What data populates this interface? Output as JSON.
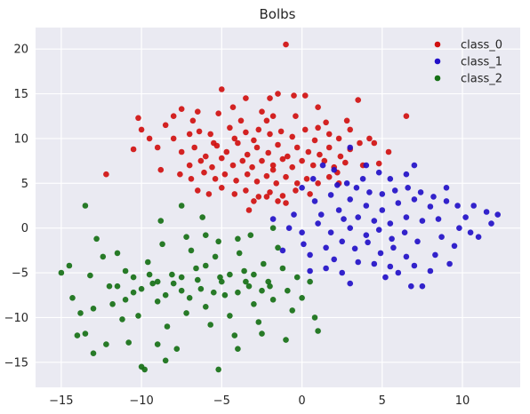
{
  "chart_data": {
    "type": "scatter",
    "title": "Bolbs",
    "xlabel": "",
    "ylabel": "",
    "xlim": [
      -16.6,
      13.6
    ],
    "ylim": [
      -17.8,
      22.4
    ],
    "xticks": [
      -15,
      -10,
      -5,
      0,
      5,
      10
    ],
    "yticks": [
      -15,
      -10,
      -5,
      0,
      5,
      10,
      15,
      20
    ],
    "grid": true,
    "legend_placement": "top-right",
    "series": [
      {
        "name": "class_0",
        "color": "#d01010",
        "points": [
          [
            -1,
            20.5
          ],
          [
            -5,
            15.5
          ],
          [
            -3.5,
            14.5
          ],
          [
            -2,
            14.5
          ],
          [
            -0.5,
            14.8
          ],
          [
            -1.5,
            15
          ],
          [
            0.2,
            14.8
          ],
          [
            -6.5,
            13
          ],
          [
            -7.5,
            13.3
          ],
          [
            -4.3,
            13.5
          ],
          [
            -2.5,
            13
          ],
          [
            -1.8,
            12.5
          ],
          [
            -0.4,
            12.5
          ],
          [
            1,
            13.5
          ],
          [
            3.5,
            14.3
          ],
          [
            6.5,
            12.5
          ],
          [
            -10.2,
            12.3
          ],
          [
            -10,
            11
          ],
          [
            -8.5,
            11.5
          ],
          [
            -9,
            9
          ],
          [
            -10.5,
            8.8
          ],
          [
            -8,
            10
          ],
          [
            -7,
            10.5
          ],
          [
            -6.4,
            10.8
          ],
          [
            -5.7,
            10.5
          ],
          [
            -4.5,
            11.2
          ],
          [
            -3.5,
            10.7
          ],
          [
            -2.7,
            11
          ],
          [
            -2,
            10.5
          ],
          [
            -1.3,
            10.8
          ],
          [
            -0.6,
            10.2
          ],
          [
            0.2,
            11
          ],
          [
            1,
            11.2
          ],
          [
            1.7,
            10.5
          ],
          [
            2.3,
            10
          ],
          [
            3,
            11
          ],
          [
            3.6,
            9.5
          ],
          [
            4.2,
            10
          ],
          [
            -7.5,
            8.5
          ],
          [
            -6.7,
            9
          ],
          [
            -6,
            8
          ],
          [
            -5.3,
            9.2
          ],
          [
            -4.7,
            8.5
          ],
          [
            -4,
            9.5
          ],
          [
            -3.4,
            8.2
          ],
          [
            -2.8,
            9
          ],
          [
            -2.1,
            8.4
          ],
          [
            -1.5,
            9.3
          ],
          [
            -0.9,
            8
          ],
          [
            -0.3,
            9
          ],
          [
            0.4,
            8.5
          ],
          [
            1.1,
            8.2
          ],
          [
            1.7,
            9
          ],
          [
            2.4,
            8
          ],
          [
            3,
            8.8
          ],
          [
            -7,
            7
          ],
          [
            -6.3,
            7.5
          ],
          [
            -5.6,
            6.8
          ],
          [
            -5,
            7.8
          ],
          [
            -4.3,
            7
          ],
          [
            -3.7,
            7.5
          ],
          [
            -3.1,
            6.8
          ],
          [
            -2.5,
            7.5
          ],
          [
            -1.8,
            7
          ],
          [
            -1.2,
            7.7
          ],
          [
            -0.6,
            6.8
          ],
          [
            0,
            7.5
          ],
          [
            0.7,
            7
          ],
          [
            1.4,
            7.5
          ],
          [
            2,
            6.8
          ],
          [
            2.7,
            7.3
          ],
          [
            -8.8,
            6.5
          ],
          [
            -7.6,
            6
          ],
          [
            -6.9,
            5.5
          ],
          [
            -6.1,
            6.2
          ],
          [
            -5.4,
            5.5
          ],
          [
            -4.8,
            6
          ],
          [
            -4.1,
            5.3
          ],
          [
            -3.4,
            6
          ],
          [
            -2.8,
            5.2
          ],
          [
            -2.2,
            5.8
          ],
          [
            -1.6,
            5
          ],
          [
            -1,
            5.7
          ],
          [
            -0.3,
            5
          ],
          [
            0.3,
            5.5
          ],
          [
            1,
            5
          ],
          [
            1.7,
            5.7
          ],
          [
            2.3,
            5
          ],
          [
            -6.5,
            4.2
          ],
          [
            -5.8,
            3.8
          ],
          [
            -5,
            4.5
          ],
          [
            -4.2,
            3.8
          ],
          [
            -3.5,
            4.2
          ],
          [
            -2.7,
            3.5
          ],
          [
            -2,
            4
          ],
          [
            -1.2,
            3.6
          ],
          [
            -0.4,
            4.2
          ],
          [
            0.5,
            3.8
          ],
          [
            -3,
            3
          ],
          [
            -2.2,
            3.5
          ],
          [
            -1.5,
            3
          ],
          [
            -12.2,
            6
          ],
          [
            -3.3,
            2
          ],
          [
            -1,
            2.8
          ],
          [
            -1.8,
            6.5
          ],
          [
            -3,
            9.8
          ],
          [
            -4.2,
            10
          ],
          [
            -5.5,
            9.5
          ],
          [
            -6.8,
            12
          ],
          [
            -8,
            12.5
          ],
          [
            -9.5,
            10
          ],
          [
            -2.2,
            12
          ],
          [
            -3.8,
            12
          ],
          [
            -5.2,
            12.8
          ],
          [
            0.8,
            9.8
          ],
          [
            1.5,
            11.8
          ],
          [
            2.8,
            12
          ],
          [
            4.5,
            9.5
          ],
          [
            5.4,
            8.5
          ],
          [
            4.8,
            7.2
          ],
          [
            3.8,
            7
          ],
          [
            2.2,
            6.2
          ]
        ]
      },
      {
        "name": "class_1",
        "color": "#2210c8",
        "points": [
          [
            12.2,
            1.5
          ],
          [
            11.5,
            1.8
          ],
          [
            11,
            -1
          ],
          [
            10.7,
            2.5
          ],
          [
            9.7,
            2.5
          ],
          [
            9,
            4.5
          ],
          [
            8.5,
            1
          ],
          [
            8.3,
            -3
          ],
          [
            7.5,
            -6.5
          ],
          [
            6.8,
            -6.5
          ],
          [
            7,
            7
          ],
          [
            6.5,
            6
          ],
          [
            5.5,
            5.5
          ],
          [
            4.8,
            6.2
          ],
          [
            4,
            7
          ],
          [
            2.8,
            5
          ],
          [
            3,
            9
          ],
          [
            2.5,
            -5
          ],
          [
            1.5,
            -4.5
          ],
          [
            0.5,
            -4.8
          ],
          [
            0.1,
            -1.8
          ],
          [
            -0.5,
            1.5
          ],
          [
            0,
            4.5
          ],
          [
            0.8,
            3
          ],
          [
            1.2,
            1.5
          ],
          [
            1.8,
            3.7
          ],
          [
            2.3,
            2
          ],
          [
            3,
            3.2
          ],
          [
            3.5,
            1.2
          ],
          [
            4,
            2.5
          ],
          [
            4.5,
            0.8
          ],
          [
            5,
            2
          ],
          [
            5.5,
            0.5
          ],
          [
            6,
            2.8
          ],
          [
            6.5,
            1.2
          ],
          [
            7,
            3.2
          ],
          [
            7.5,
            0.8
          ],
          [
            8,
            2.4
          ],
          [
            3,
            0
          ],
          [
            4,
            -0.8
          ],
          [
            4.8,
            -0.2
          ],
          [
            5.6,
            -1.2
          ],
          [
            6.4,
            -0.5
          ],
          [
            7.2,
            -1.5
          ],
          [
            2.5,
            -1.5
          ],
          [
            3.3,
            -2.3
          ],
          [
            4.1,
            -1.6
          ],
          [
            4.9,
            -2.8
          ],
          [
            5.7,
            -2.2
          ],
          [
            6.5,
            -3.2
          ],
          [
            3.5,
            -3.8
          ],
          [
            4.5,
            -4
          ],
          [
            5.5,
            -4.3
          ],
          [
            1.5,
            -2.2
          ],
          [
            2,
            -3.5
          ],
          [
            1,
            0.5
          ],
          [
            1.8,
            -0.5
          ],
          [
            2.6,
            1
          ],
          [
            3.4,
            4.5
          ],
          [
            4.2,
            4
          ],
          [
            5,
            3.8
          ],
          [
            5.8,
            4.2
          ],
          [
            6.6,
            4.5
          ],
          [
            7.4,
            4
          ],
          [
            8.2,
            3.5
          ],
          [
            9,
            3
          ],
          [
            9.8,
            0
          ],
          [
            10.5,
            -0.5
          ],
          [
            9.5,
            -2
          ],
          [
            8.7,
            -1
          ],
          [
            0.7,
            5.5
          ],
          [
            1.3,
            7
          ],
          [
            2,
            6.5
          ],
          [
            -1.8,
            1
          ],
          [
            -0.8,
            0
          ],
          [
            0,
            -0.5
          ],
          [
            0.5,
            -3
          ],
          [
            2.2,
            4.8
          ],
          [
            3.8,
            5.5
          ],
          [
            6,
            -5
          ],
          [
            7,
            -4.2
          ],
          [
            8,
            -4.8
          ],
          [
            11.8,
            0.5
          ],
          [
            10.2,
            1.2
          ],
          [
            9.2,
            -4
          ],
          [
            5.2,
            -5.5
          ],
          [
            3,
            -6.2
          ],
          [
            -1.2,
            -2.5
          ]
        ]
      },
      {
        "name": "class_2",
        "color": "#167016",
        "points": [
          [
            -15,
            -5
          ],
          [
            -14.5,
            -4.2
          ],
          [
            -14.3,
            -7.8
          ],
          [
            -13.8,
            -9.5
          ],
          [
            -13.5,
            -11.8
          ],
          [
            -13.2,
            -5.3
          ],
          [
            -13,
            -9
          ],
          [
            -12.4,
            -3.2
          ],
          [
            -12,
            -6.5
          ],
          [
            -11.8,
            -8.5
          ],
          [
            -11.5,
            -2.8
          ],
          [
            -11.2,
            -10.2
          ],
          [
            -11,
            -4.8
          ],
          [
            -10.8,
            -12.8
          ],
          [
            -10.5,
            -7.2
          ],
          [
            -10.2,
            -9.8
          ],
          [
            -10,
            -15.5
          ],
          [
            -9.8,
            -15.8
          ],
          [
            -9.6,
            -3.8
          ],
          [
            -9.3,
            -6.2
          ],
          [
            -9,
            -8.2
          ],
          [
            -8.7,
            -1.8
          ],
          [
            -8.4,
            -11
          ],
          [
            -8.1,
            -5.2
          ],
          [
            -7.8,
            -13.5
          ],
          [
            -7.5,
            -7
          ],
          [
            -7.2,
            -9.5
          ],
          [
            -6.9,
            -2.5
          ],
          [
            -6.6,
            -4.5
          ],
          [
            -6.3,
            -6.8
          ],
          [
            -6,
            -8.8
          ],
          [
            -5.7,
            -10.8
          ],
          [
            -5.4,
            -3.2
          ],
          [
            -5.1,
            -5.5
          ],
          [
            -4.8,
            -7.5
          ],
          [
            -4.5,
            -9.8
          ],
          [
            -4.2,
            -12
          ],
          [
            -3.9,
            -2.8
          ],
          [
            -3.6,
            -4.8
          ],
          [
            -3.3,
            -6.5
          ],
          [
            -3,
            -8.5
          ],
          [
            -2.7,
            -10.5
          ],
          [
            -2.4,
            -4
          ],
          [
            -2.1,
            -6
          ],
          [
            -1.8,
            -8
          ],
          [
            -1.5,
            -2.2
          ],
          [
            -1.2,
            -4.5
          ],
          [
            -0.9,
            -7
          ],
          [
            -0.6,
            -9.2
          ],
          [
            -0.3,
            -5.5
          ],
          [
            0,
            -7.8
          ],
          [
            -11.5,
            -6.5
          ],
          [
            -11,
            -8
          ],
          [
            -10.5,
            -5.5
          ],
          [
            -10,
            -6.8
          ],
          [
            -9.5,
            -5.2
          ],
          [
            -9,
            -6
          ],
          [
            -8.5,
            -7.5
          ],
          [
            -8,
            -6.2
          ],
          [
            -7.5,
            -5.5
          ],
          [
            -7,
            -7.8
          ],
          [
            -6.5,
            -5.8
          ],
          [
            -6,
            -4.2
          ],
          [
            -5.5,
            -7.2
          ],
          [
            -5,
            -6
          ],
          [
            -4.5,
            -5.2
          ],
          [
            -4,
            -7.2
          ],
          [
            -3.5,
            -6
          ],
          [
            -3,
            -5.2
          ],
          [
            -2.5,
            -7
          ],
          [
            -2,
            -6.5
          ],
          [
            -8.8,
            0.8
          ],
          [
            -7.2,
            -1
          ],
          [
            -6,
            -0.8
          ],
          [
            -5.2,
            -1.5
          ],
          [
            -4,
            -1.2
          ],
          [
            -3.2,
            -0.8
          ],
          [
            -13.5,
            2.5
          ],
          [
            -7.5,
            2.5
          ],
          [
            -6.2,
            1.2
          ],
          [
            -1.8,
            0
          ],
          [
            -12.8,
            -1.2
          ],
          [
            -12.2,
            -13
          ],
          [
            -9,
            -13
          ],
          [
            -8.5,
            -14.8
          ],
          [
            -5.2,
            -15.8
          ],
          [
            -4,
            -13.5
          ],
          [
            -2.5,
            -11.8
          ],
          [
            -1,
            -12.5
          ],
          [
            -14,
            -12
          ],
          [
            -13,
            -14
          ],
          [
            0.8,
            -10
          ],
          [
            0.5,
            -6
          ],
          [
            1,
            -11.5
          ]
        ]
      }
    ]
  }
}
